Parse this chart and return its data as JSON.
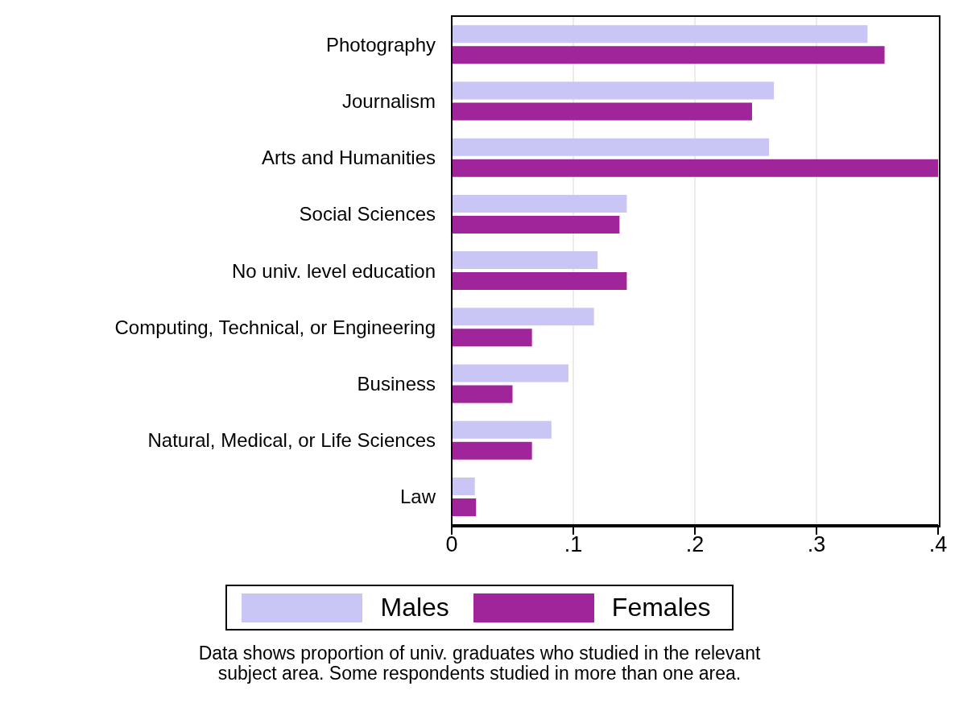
{
  "chart_data": {
    "type": "bar",
    "orientation": "horizontal",
    "categories": [
      "Photography",
      "Journalism",
      "Arts and Humanities",
      "Social Sciences",
      "No univ. level education",
      "Computing, Technical, or Engineering",
      "Business",
      "Natural, Medical, or Life Sciences",
      "Law"
    ],
    "series": [
      {
        "name": "Males",
        "color": "#c9c6f5",
        "values": [
          0.342,
          0.265,
          0.261,
          0.144,
          0.12,
          0.117,
          0.096,
          0.082,
          0.019
        ]
      },
      {
        "name": "Females",
        "color": "#a0259a",
        "values": [
          0.356,
          0.247,
          0.4,
          0.138,
          0.144,
          0.066,
          0.05,
          0.066,
          0.02
        ]
      }
    ],
    "xlim": [
      0,
      0.4
    ],
    "xticks": [
      {
        "value": 0,
        "label": "0"
      },
      {
        "value": 0.1,
        "label": ".1"
      },
      {
        "value": 0.2,
        "label": ".2"
      },
      {
        "value": 0.3,
        "label": ".3"
      },
      {
        "value": 0.4,
        "label": ".4"
      }
    ],
    "grid": "x",
    "legend": "bottom",
    "annotations": [
      "Data shows proportion of univ. graduates who studied in the relevant subject area. Some respondents studied in more than one area."
    ]
  }
}
